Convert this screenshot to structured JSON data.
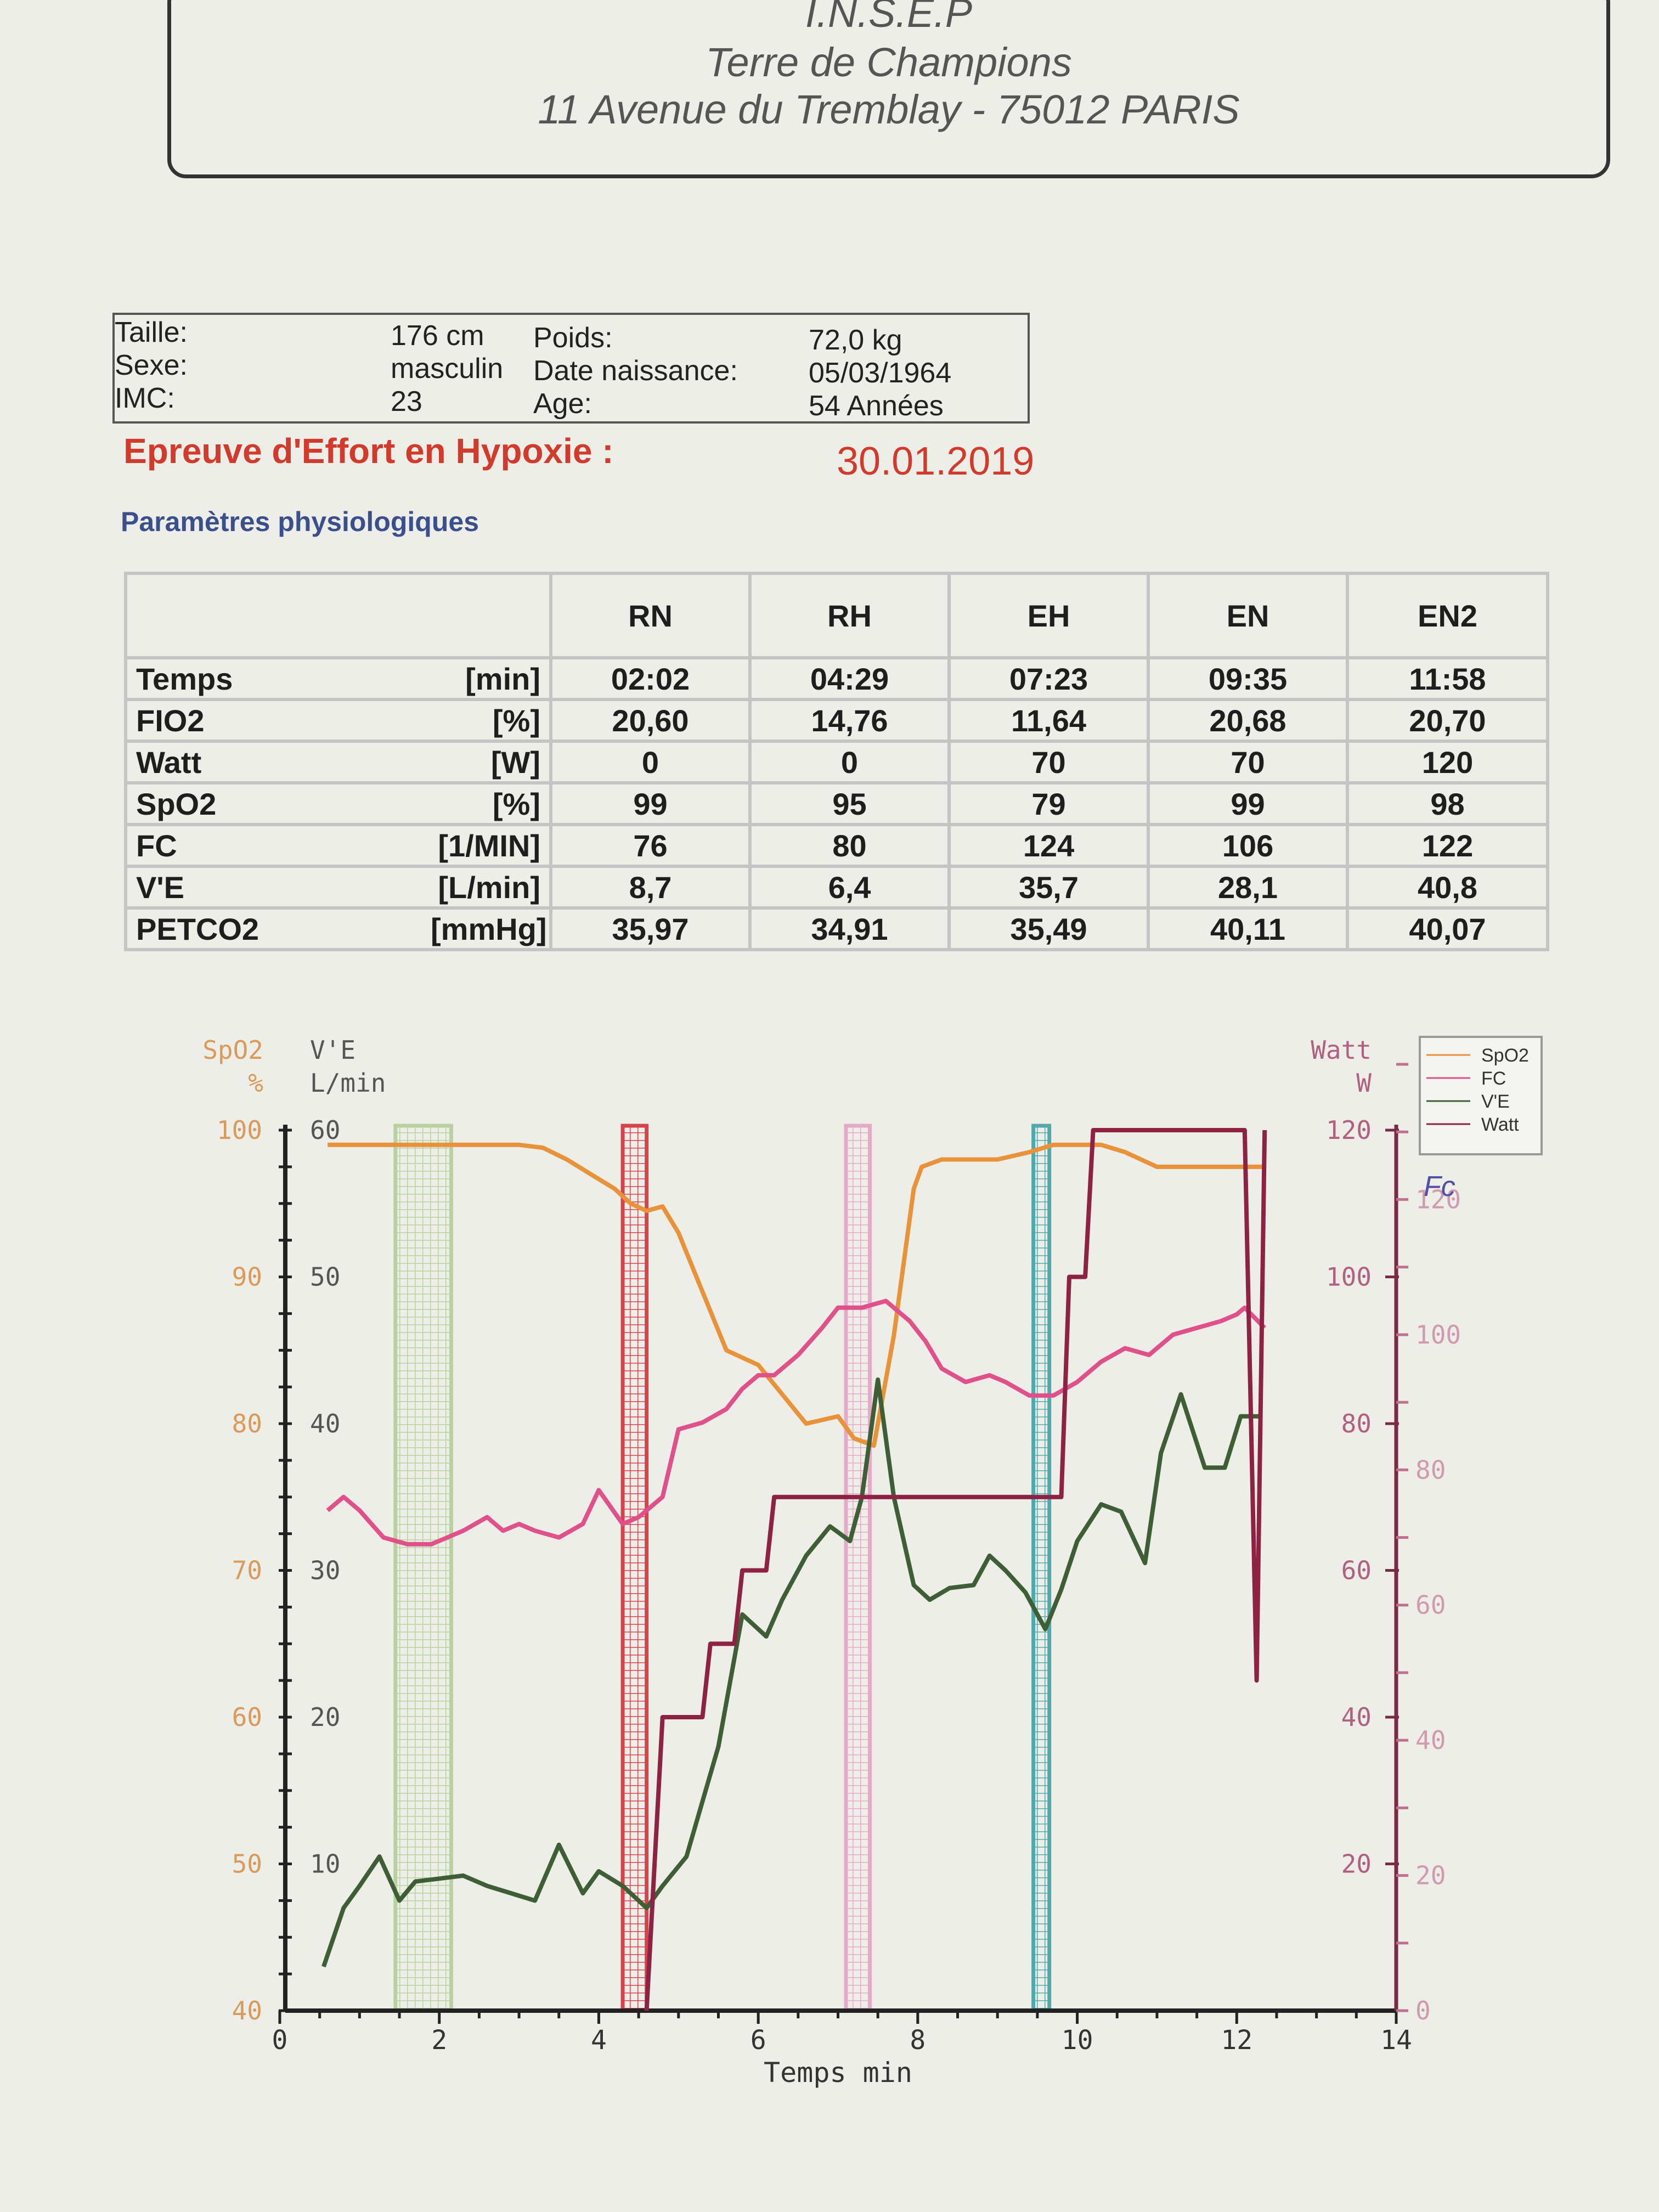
{
  "header": {
    "line1": "I.N.S.E.P",
    "line2": "Terre de Champions",
    "line3": "11 Avenue du Tremblay - 75012 PARIS"
  },
  "patient": {
    "taille_label": "Taille:",
    "taille_value": "176 cm",
    "sexe_label": "Sexe:",
    "sexe_value": "masculin",
    "imc_label": "IMC:",
    "imc_value": "23",
    "poids_label": "Poids:",
    "poids_value": "72,0 kg",
    "naissance_label": "Date naissance:",
    "naissance_value": "05/03/1964",
    "age_label": "Age:",
    "age_value": "54 Années"
  },
  "report": {
    "title": "Epreuve d'Effort en Hypoxie :",
    "date": "30.01.2019",
    "subtitle": "Paramètres physiologiques"
  },
  "table": {
    "columns": [
      "RN",
      "RH",
      "EH",
      "EN",
      "EN2"
    ],
    "rows": [
      {
        "param": "Temps",
        "unit": "[min]",
        "values": [
          "02:02",
          "04:29",
          "07:23",
          "09:35",
          "11:58"
        ]
      },
      {
        "param": "FIO2",
        "unit": "[%]",
        "values": [
          "20,60",
          "14,76",
          "11,64",
          "20,68",
          "20,70"
        ]
      },
      {
        "param": "Watt",
        "unit": "[W]",
        "values": [
          "0",
          "0",
          "70",
          "70",
          "120"
        ]
      },
      {
        "param": "SpO2",
        "unit": "[%]",
        "values": [
          "99",
          "95",
          "79",
          "99",
          "98"
        ]
      },
      {
        "param": "FC",
        "unit": "[1/MIN]",
        "values": [
          "76",
          "80",
          "124",
          "106",
          "122"
        ]
      },
      {
        "param": "V'E",
        "unit": "[L/min]",
        "values": [
          "8,7",
          "6,4",
          "35,7",
          "28,1",
          "40,8"
        ]
      },
      {
        "param": "PETCO2",
        "unit": "[mmHg]",
        "values": [
          "35,97",
          "34,91",
          "35,49",
          "40,11",
          "40,07"
        ]
      }
    ]
  },
  "colors": {
    "spo2": "#e8923a",
    "fc": "#e0508a",
    "ve": "#3e5f36",
    "watt": "#8e2245",
    "band_rn": "#b7cf9c",
    "band_rh": "#d43a44",
    "band_eh": "#e4a8c8",
    "band_en": "#4aa6a8"
  },
  "chart_data": {
    "type": "line",
    "xlabel": "Temps  min",
    "xlim": [
      0,
      14
    ],
    "x_ticks": [
      "0",
      "2",
      "4",
      "6",
      "8",
      "10",
      "12",
      "14"
    ],
    "axes": {
      "spo2": {
        "title": "SpO2",
        "unit": "%",
        "ylim": [
          40,
          100
        ],
        "ticks": [
          "40",
          "50",
          "60",
          "70",
          "80",
          "90",
          "100"
        ]
      },
      "ve": {
        "title": "V'E",
        "unit": "L/min",
        "ylim": [
          0,
          60
        ],
        "ticks": [
          "10",
          "20",
          "30",
          "40",
          "50",
          "60"
        ]
      },
      "watt": {
        "title": "Watt",
        "unit": "W",
        "ylim": [
          0,
          120
        ],
        "ticks": [
          "20",
          "40",
          "60",
          "80",
          "100",
          "120"
        ]
      },
      "fc": {
        "title": "Fc",
        "ylim": [
          0,
          140
        ],
        "ticks": [
          "0",
          "20",
          "40",
          "60",
          "80",
          "100",
          "120"
        ]
      }
    },
    "legend": [
      "SpO2",
      "FC",
      "V'E",
      "Watt"
    ],
    "legend_position": "top-right",
    "bands": [
      {
        "name": "RN",
        "x": [
          1.45,
          2.15
        ]
      },
      {
        "name": "RH",
        "x": [
          4.3,
          4.6
        ]
      },
      {
        "name": "EH",
        "x": [
          7.1,
          7.4
        ]
      },
      {
        "name": "EN",
        "x": [
          9.45,
          9.65
        ]
      }
    ],
    "series": [
      {
        "name": "SpO2",
        "axis": "spo2",
        "x": [
          0.6,
          1.0,
          1.5,
          2.0,
          2.5,
          3.0,
          3.3,
          3.6,
          3.9,
          4.2,
          4.4,
          4.6,
          4.8,
          5.0,
          5.3,
          5.6,
          6.0,
          6.3,
          6.6,
          7.0,
          7.2,
          7.45,
          7.7,
          7.95,
          8.05,
          8.3,
          8.7,
          9.0,
          9.4,
          9.7,
          10.0,
          10.3,
          10.6,
          10.8,
          11.0,
          11.5,
          12.0,
          12.35
        ],
        "values": [
          99,
          99,
          99,
          99,
          99,
          99,
          98.8,
          98,
          97,
          96,
          95,
          94.5,
          94.8,
          93,
          89,
          85,
          84,
          82,
          80,
          80.5,
          79,
          78.5,
          86,
          96,
          97.5,
          98,
          98,
          98,
          98.5,
          99,
          99,
          99,
          98.5,
          98,
          97.5,
          97.5,
          97.5,
          97.5
        ]
      },
      {
        "name": "FC",
        "axis": "fc",
        "x": [
          0.6,
          0.8,
          1.0,
          1.3,
          1.6,
          1.9,
          2.1,
          2.3,
          2.6,
          2.8,
          3.0,
          3.2,
          3.5,
          3.8,
          4.0,
          4.3,
          4.5,
          4.8,
          5.0,
          5.3,
          5.6,
          5.8,
          6.0,
          6.2,
          6.5,
          6.8,
          7.0,
          7.3,
          7.6,
          7.9,
          8.1,
          8.3,
          8.6,
          8.9,
          9.1,
          9.4,
          9.7,
          10.0,
          10.3,
          10.6,
          10.9,
          11.2,
          11.5,
          11.8,
          12.0,
          12.1,
          12.35
        ],
        "values": [
          74,
          76,
          74,
          70,
          69,
          69,
          70,
          71,
          73,
          71,
          72,
          71,
          70,
          72,
          77,
          72,
          73,
          76,
          86,
          87,
          89,
          92,
          94,
          94,
          97,
          101,
          104,
          104,
          105,
          102,
          99,
          95,
          93,
          94,
          93,
          91,
          91,
          93,
          96,
          98,
          97,
          100,
          101,
          102,
          103,
          104,
          101
        ]
      },
      {
        "name": "V'E",
        "axis": "ve",
        "x": [
          0.55,
          0.8,
          1.0,
          1.25,
          1.5,
          1.7,
          2.0,
          2.3,
          2.6,
          2.9,
          3.2,
          3.5,
          3.8,
          4.0,
          4.3,
          4.6,
          4.8,
          5.1,
          5.5,
          5.8,
          6.1,
          6.3,
          6.6,
          6.9,
          7.15,
          7.3,
          7.5,
          7.7,
          7.95,
          8.15,
          8.4,
          8.7,
          8.9,
          9.1,
          9.35,
          9.6,
          9.8,
          10.0,
          10.3,
          10.55,
          10.85,
          11.05,
          11.3,
          11.6,
          11.85,
          12.05,
          12.3
        ],
        "values": [
          3,
          7,
          8.5,
          10.5,
          7.5,
          8.8,
          9,
          9.2,
          8.5,
          8,
          7.5,
          11.3,
          8,
          9.5,
          8.5,
          7,
          8.5,
          10.5,
          18,
          27,
          25.5,
          28,
          31,
          33,
          32,
          35,
          43,
          35,
          29,
          28,
          28.8,
          29,
          31,
          30,
          28.5,
          26,
          28.7,
          32,
          34.5,
          34,
          30.5,
          38,
          42,
          37,
          37,
          40.5,
          40.5
        ]
      },
      {
        "name": "Watt",
        "axis": "watt",
        "x": [
          4.6,
          4.8,
          4.9,
          5.3,
          5.4,
          5.7,
          5.8,
          6.1,
          6.2,
          6.5,
          6.6,
          9.8,
          9.9,
          10.1,
          10.2,
          10.8,
          11.0,
          12.0,
          12.1,
          12.25,
          12.35
        ],
        "values": [
          0,
          40,
          40,
          40,
          50,
          50,
          60,
          60,
          70,
          70,
          70,
          70,
          100,
          100,
          120,
          120,
          120,
          120,
          120,
          45,
          120
        ]
      }
    ]
  }
}
